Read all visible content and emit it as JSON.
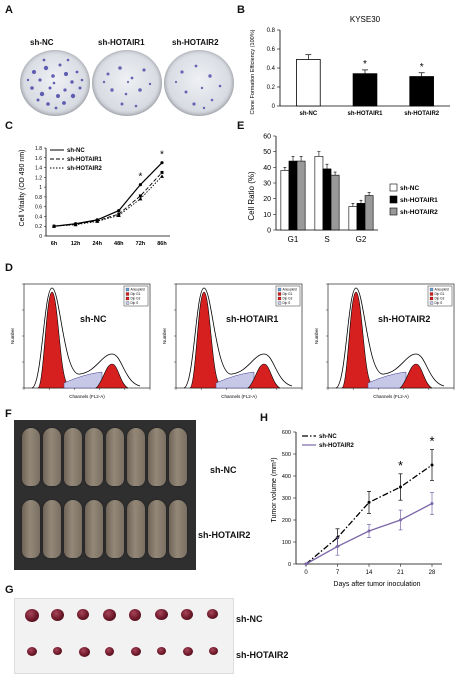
{
  "panels": {
    "A": {
      "letter": "A",
      "groups": [
        "sh-NC",
        "sh-HOTAIR1",
        "sh-HOTAIR2"
      ]
    },
    "B": {
      "letter": "B",
      "title": "KYSE30",
      "ylabel": "Clone Formation Efficiency (100%)"
    },
    "C": {
      "letter": "C",
      "ylabel": "Cell Vitality (OD 490 nm)"
    },
    "D": {
      "letter": "D",
      "groups": [
        "sh-NC",
        "sh-HOTAIR1",
        "sh-HOTAIR2"
      ],
      "xlabel": "Channels (FL2-A)",
      "ylabel": "Number",
      "legend": [
        "Aneuploid",
        "Dip G1",
        "Dip G2",
        "Dip S"
      ]
    },
    "E": {
      "letter": "E",
      "ylabel": "Cell Ratio (%)"
    },
    "F": {
      "letter": "F",
      "groups": [
        "sh-NC",
        "sh-HOTAIR2"
      ]
    },
    "G": {
      "letter": "G",
      "groups": [
        "sh-NC",
        "sh-HOTAIR2"
      ]
    },
    "H": {
      "letter": "H",
      "ylabel": "Tumor volume (mm³)",
      "xlabel": "Days after tumor inoculation"
    }
  },
  "chart_data": [
    {
      "id": "B",
      "type": "bar",
      "title": "KYSE30",
      "ylabel": "Clone Formation Efficiency (100%)",
      "categories": [
        "sh-NC",
        "sh-HOTAIR1",
        "sh-HOTAIR2"
      ],
      "values": [
        0.49,
        0.34,
        0.31
      ],
      "errors": [
        0.05,
        0.04,
        0.04
      ],
      "colors": [
        "#ffffff",
        "#000000",
        "#000000"
      ],
      "significance": [
        "",
        "*",
        "*"
      ],
      "ylim": [
        0,
        0.8
      ],
      "yticks": [
        0,
        0.2,
        0.4,
        0.6,
        0.8
      ]
    },
    {
      "id": "C",
      "type": "line",
      "ylabel": "Cell Vitality (OD 490 nm)",
      "categories": [
        "6h",
        "12h",
        "24h",
        "48h",
        "72h",
        "86h"
      ],
      "series": [
        {
          "name": "sh-NC",
          "values": [
            0.2,
            0.25,
            0.33,
            0.52,
            1.05,
            1.5
          ],
          "style": "solid",
          "marker": "circle"
        },
        {
          "name": "sh-HOTAIR1",
          "values": [
            0.2,
            0.24,
            0.31,
            0.45,
            0.82,
            1.3
          ],
          "style": "dashed",
          "marker": "square"
        },
        {
          "name": "sh-HOTAIR2",
          "values": [
            0.2,
            0.23,
            0.3,
            0.42,
            0.76,
            1.22
          ],
          "style": "dotted",
          "marker": "triangle"
        }
      ],
      "significance": {
        "72h": "*",
        "86h": "*"
      },
      "ylim": [
        0,
        1.8
      ],
      "yticks": [
        0,
        0.2,
        0.4,
        0.6,
        0.8,
        1,
        1.2,
        1.4,
        1.6,
        1.8
      ]
    },
    {
      "id": "E",
      "type": "bar",
      "ylabel": "Cell Ratio (%)",
      "categories": [
        "G1",
        "S",
        "G2"
      ],
      "series": [
        {
          "name": "sh-NC",
          "values": [
            38,
            47,
            15
          ],
          "errors": [
            2,
            3,
            2
          ],
          "color": "#ffffff"
        },
        {
          "name": "sh-HOTAIR1",
          "values": [
            44,
            39,
            17
          ],
          "errors": [
            3,
            3,
            2
          ],
          "color": "#000000"
        },
        {
          "name": "sh-HOTAIR2",
          "values": [
            44,
            35,
            22
          ],
          "errors": [
            3,
            2,
            2
          ],
          "color": "#999999"
        }
      ],
      "ylim": [
        0,
        60
      ],
      "yticks": [
        0,
        10,
        20,
        30,
        40,
        50,
        60
      ]
    },
    {
      "id": "H",
      "type": "line",
      "ylabel": "Tumor volume (mm³)",
      "xlabel": "Days after tumor inoculation",
      "x": [
        0,
        7,
        14,
        21,
        28
      ],
      "series": [
        {
          "name": "sh-NC",
          "values": [
            0,
            120,
            280,
            350,
            450
          ],
          "errors": [
            0,
            40,
            50,
            60,
            70
          ],
          "style": "dashdot",
          "color": "#000000"
        },
        {
          "name": "sh-HOTAIR2",
          "values": [
            0,
            80,
            150,
            200,
            275
          ],
          "errors": [
            0,
            40,
            30,
            45,
            50
          ],
          "style": "solid",
          "color": "#7a66a8"
        }
      ],
      "significance": {
        "21": "*",
        "28": "*"
      },
      "xlim": [
        0,
        28
      ],
      "ylim": [
        0,
        600
      ],
      "yticks": [
        0,
        100,
        200,
        300,
        400,
        500,
        600
      ]
    }
  ]
}
